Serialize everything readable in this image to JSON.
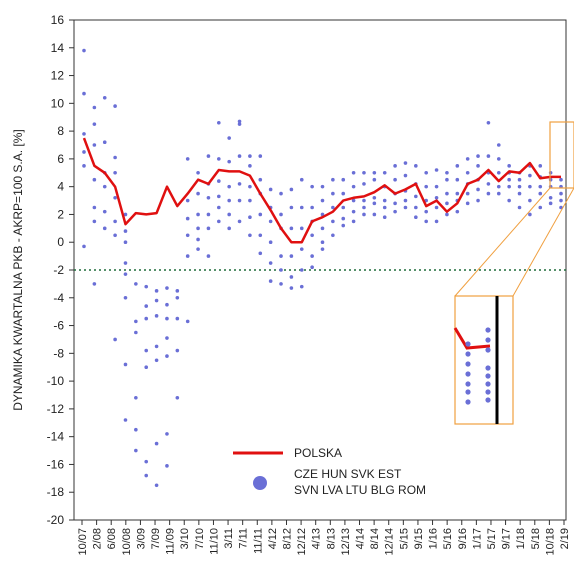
{
  "chart_data": {
    "type": "scatter",
    "ylabel": "DYNAMIKA KWARTALNA PKB - AKRP=100 S.A. [%]",
    "xlabel": "",
    "ylim": [
      -20,
      16
    ],
    "yticks": [
      16,
      14,
      12,
      10,
      8,
      6,
      4,
      2,
      0,
      -2,
      -4,
      -6,
      -8,
      -10,
      -12,
      -14,
      -16,
      -18,
      -20
    ],
    "x_tick_labels": [
      "10/07",
      "2/08",
      "6/08",
      "10/08",
      "3/09",
      "7/09",
      "11/09",
      "3/10",
      "7/10",
      "11/10",
      "3/11",
      "7/11",
      "11/11",
      "4/12",
      "8/12",
      "12/12",
      "4/13",
      "8/13",
      "12/13",
      "4/14",
      "8/14",
      "12/14",
      "5/15",
      "9/15",
      "1/16",
      "5/16",
      "9/16",
      "1/17",
      "5/17",
      "9/17",
      "1/18",
      "5/18",
      "10/18",
      "2/19"
    ],
    "reference_line": {
      "y": -2,
      "style": "dotted",
      "color": "#1f6b3a"
    },
    "legend": {
      "placement": "bottom-center",
      "items": [
        {
          "label": "POLSKA",
          "kind": "line",
          "color": "#e01010"
        },
        {
          "label": "CZE HUN SVK EST",
          "kind": "dot",
          "color": "#6a6fd6"
        },
        {
          "label": "SVN LVA LTU BLG ROM",
          "kind": "dot",
          "color": "#6a6fd6"
        }
      ]
    },
    "series": [
      {
        "name": "POLSKA",
        "color": "#e01010",
        "x": [
          0,
          1,
          2,
          3,
          4,
          5,
          6,
          7,
          8,
          9,
          10,
          11,
          12,
          13,
          14,
          15,
          16,
          17,
          18,
          19,
          20,
          21,
          22,
          23,
          24,
          25,
          26,
          27,
          28,
          29,
          30,
          31,
          32,
          33,
          34,
          35,
          36,
          37,
          38,
          39,
          40,
          41,
          42,
          43,
          44,
          45,
          46
        ],
        "y": [
          7.5,
          5.5,
          5.0,
          4.0,
          1.3,
          2.1,
          2.0,
          2.1,
          4.0,
          2.6,
          3.5,
          4.5,
          4.2,
          5.2,
          5.1,
          5.1,
          4.8,
          3.5,
          2.3,
          1.0,
          0.0,
          0.0,
          1.5,
          1.8,
          2.2,
          3.0,
          3.2,
          3.3,
          3.6,
          4.1,
          3.5,
          3.8,
          4.2,
          2.6,
          3.0,
          2.2,
          2.8,
          4.2,
          4.5,
          5.2,
          4.4,
          5.1,
          5.0,
          5.7,
          4.6,
          4.7,
          4.7
        ]
      },
      {
        "name": "CZE HUN SVK EST SVN LVA LTU BLG ROM",
        "color": "#6a6fd6",
        "points": [
          [
            0,
            13.8
          ],
          [
            0,
            10.7
          ],
          [
            0,
            7.8
          ],
          [
            0,
            6.5
          ],
          [
            0,
            5.5
          ],
          [
            0,
            -0.3
          ],
          [
            1,
            9.7
          ],
          [
            1,
            8.5
          ],
          [
            1,
            7.0
          ],
          [
            1,
            4.5
          ],
          [
            1,
            2.5
          ],
          [
            1,
            1.5
          ],
          [
            1,
            -3.0
          ],
          [
            2,
            10.4
          ],
          [
            2,
            7.2
          ],
          [
            2,
            5.0
          ],
          [
            2,
            4.0
          ],
          [
            2,
            2.2
          ],
          [
            2,
            1.0
          ],
          [
            3,
            9.8
          ],
          [
            3,
            6.1
          ],
          [
            3,
            5.0
          ],
          [
            3,
            3.2
          ],
          [
            3,
            1.5
          ],
          [
            3,
            0.5
          ],
          [
            3,
            -7.0
          ],
          [
            4,
            2.0
          ],
          [
            4,
            0.8
          ],
          [
            4,
            0.0
          ],
          [
            4,
            -1.5
          ],
          [
            4,
            -2.3
          ],
          [
            4,
            -4.0
          ],
          [
            4,
            -8.8
          ],
          [
            4,
            -12.8
          ],
          [
            5,
            -3.0
          ],
          [
            5,
            -5.7
          ],
          [
            5,
            -6.5
          ],
          [
            5,
            -11.2
          ],
          [
            5,
            -13.5
          ],
          [
            5,
            -15.0
          ],
          [
            6,
            -3.2
          ],
          [
            6,
            -4.6
          ],
          [
            6,
            -5.5
          ],
          [
            6,
            -7.8
          ],
          [
            6,
            -9.0
          ],
          [
            6,
            -15.8
          ],
          [
            6,
            -16.8
          ],
          [
            7,
            -3.5
          ],
          [
            7,
            -4.2
          ],
          [
            7,
            -5.3
          ],
          [
            7,
            -7.5
          ],
          [
            7,
            -8.5
          ],
          [
            7,
            -14.5
          ],
          [
            7,
            -17.5
          ],
          [
            8,
            -3.3
          ],
          [
            8,
            -4.5
          ],
          [
            8,
            -5.5
          ],
          [
            8,
            -6.9
          ],
          [
            8,
            -8.2
          ],
          [
            8,
            -13.8
          ],
          [
            8,
            -16.1
          ],
          [
            9,
            -3.5
          ],
          [
            9,
            -4.0
          ],
          [
            9,
            -5.5
          ],
          [
            9,
            -7.8
          ],
          [
            9,
            -11.2
          ],
          [
            10,
            6.0
          ],
          [
            10,
            3.0
          ],
          [
            10,
            1.7
          ],
          [
            10,
            0.5
          ],
          [
            10,
            -1.0
          ],
          [
            10,
            -5.7
          ],
          [
            11,
            5.0
          ],
          [
            11,
            3.5
          ],
          [
            11,
            2.0
          ],
          [
            11,
            1.0
          ],
          [
            11,
            0.2
          ],
          [
            11,
            -0.5
          ],
          [
            12,
            6.2
          ],
          [
            12,
            4.2
          ],
          [
            12,
            3.2
          ],
          [
            12,
            2.0
          ],
          [
            12,
            1.0
          ],
          [
            12,
            -1.0
          ],
          [
            13,
            8.6
          ],
          [
            13,
            6.0
          ],
          [
            13,
            4.4
          ],
          [
            13,
            3.3
          ],
          [
            13,
            2.5
          ],
          [
            13,
            1.5
          ],
          [
            14,
            7.5
          ],
          [
            14,
            5.8
          ],
          [
            14,
            4.0
          ],
          [
            14,
            3.0
          ],
          [
            14,
            2.0
          ],
          [
            14,
            1.0
          ],
          [
            15,
            8.7
          ],
          [
            15,
            8.5
          ],
          [
            15,
            6.2
          ],
          [
            15,
            4.2
          ],
          [
            15,
            3.0
          ],
          [
            15,
            1.5
          ],
          [
            16,
            6.2
          ],
          [
            16,
            5.5
          ],
          [
            16,
            4.0
          ],
          [
            16,
            3.0
          ],
          [
            16,
            1.8
          ],
          [
            16,
            0.5
          ],
          [
            17,
            6.2
          ],
          [
            17,
            4.5
          ],
          [
            17,
            3.5
          ],
          [
            17,
            2.0
          ],
          [
            17,
            0.5
          ],
          [
            17,
            -0.8
          ],
          [
            18,
            3.8
          ],
          [
            18,
            2.5
          ],
          [
            18,
            1.5
          ],
          [
            18,
            0.0
          ],
          [
            18,
            -1.5
          ],
          [
            18,
            -2.8
          ],
          [
            19,
            3.5
          ],
          [
            19,
            2.0
          ],
          [
            19,
            1.0
          ],
          [
            19,
            -1.0
          ],
          [
            19,
            -2.0
          ],
          [
            19,
            -3.0
          ],
          [
            20,
            3.8
          ],
          [
            20,
            2.5
          ],
          [
            20,
            1.0
          ],
          [
            20,
            -1.0
          ],
          [
            20,
            -2.5
          ],
          [
            20,
            -3.3
          ],
          [
            21,
            4.5
          ],
          [
            21,
            2.5
          ],
          [
            21,
            1.0
          ],
          [
            21,
            -0.5
          ],
          [
            21,
            -2.0
          ],
          [
            21,
            -3.2
          ],
          [
            22,
            4.0
          ],
          [
            22,
            2.5
          ],
          [
            22,
            1.5
          ],
          [
            22,
            0.5
          ],
          [
            22,
            -1.0
          ],
          [
            22,
            -1.8
          ],
          [
            23,
            4.0
          ],
          [
            23,
            3.0
          ],
          [
            23,
            2.0
          ],
          [
            23,
            1.0
          ],
          [
            23,
            0.0
          ],
          [
            23,
            -0.5
          ],
          [
            24,
            4.5
          ],
          [
            24,
            3.5
          ],
          [
            24,
            2.5
          ],
          [
            24,
            1.5
          ],
          [
            24,
            0.5
          ],
          [
            25,
            4.5
          ],
          [
            25,
            3.5
          ],
          [
            25,
            2.5
          ],
          [
            25,
            1.7
          ],
          [
            25,
            1.2
          ],
          [
            26,
            5.0
          ],
          [
            26,
            4.0
          ],
          [
            26,
            3.0
          ],
          [
            26,
            2.2
          ],
          [
            26,
            1.5
          ],
          [
            27,
            5.0
          ],
          [
            27,
            4.2
          ],
          [
            27,
            3.0
          ],
          [
            27,
            2.5
          ],
          [
            27,
            2.0
          ],
          [
            28,
            5.0
          ],
          [
            28,
            4.5
          ],
          [
            28,
            3.2
          ],
          [
            28,
            2.8
          ],
          [
            28,
            2.0
          ],
          [
            29,
            5.0
          ],
          [
            29,
            4.0
          ],
          [
            29,
            3.0
          ],
          [
            29,
            2.5
          ],
          [
            29,
            1.8
          ],
          [
            30,
            5.5
          ],
          [
            30,
            4.5
          ],
          [
            30,
            3.5
          ],
          [
            30,
            2.8
          ],
          [
            30,
            2.2
          ],
          [
            31,
            5.7
          ],
          [
            31,
            4.8
          ],
          [
            31,
            3.7
          ],
          [
            31,
            3.0
          ],
          [
            31,
            2.5
          ],
          [
            32,
            5.5
          ],
          [
            32,
            4.2
          ],
          [
            32,
            3.3
          ],
          [
            32,
            2.5
          ],
          [
            32,
            1.8
          ],
          [
            33,
            5.0
          ],
          [
            33,
            4.0
          ],
          [
            33,
            3.0
          ],
          [
            33,
            2.2
          ],
          [
            33,
            1.5
          ],
          [
            34,
            5.2
          ],
          [
            34,
            4.0
          ],
          [
            34,
            3.2
          ],
          [
            34,
            2.5
          ],
          [
            34,
            1.5
          ],
          [
            35,
            5.0
          ],
          [
            35,
            4.5
          ],
          [
            35,
            3.5
          ],
          [
            35,
            2.8
          ],
          [
            35,
            2.0
          ],
          [
            36,
            5.5
          ],
          [
            36,
            4.5
          ],
          [
            36,
            3.5
          ],
          [
            36,
            3.0
          ],
          [
            36,
            2.2
          ],
          [
            37,
            6.0
          ],
          [
            37,
            5.0
          ],
          [
            37,
            4.2
          ],
          [
            37,
            3.5
          ],
          [
            37,
            2.8
          ],
          [
            38,
            6.2
          ],
          [
            38,
            5.5
          ],
          [
            38,
            4.5
          ],
          [
            38,
            3.8
          ],
          [
            38,
            3.0
          ],
          [
            39,
            8.6
          ],
          [
            39,
            6.2
          ],
          [
            39,
            5.0
          ],
          [
            39,
            4.2
          ],
          [
            39,
            3.5
          ],
          [
            40,
            7.0
          ],
          [
            40,
            6.0
          ],
          [
            40,
            5.0
          ],
          [
            40,
            4.0
          ],
          [
            40,
            3.5
          ],
          [
            41,
            5.5
          ],
          [
            41,
            5.0
          ],
          [
            41,
            4.5
          ],
          [
            41,
            4.0
          ],
          [
            41,
            3.0
          ],
          [
            42,
            5.0
          ],
          [
            42,
            4.5
          ],
          [
            42,
            4.0
          ],
          [
            42,
            3.5
          ],
          [
            42,
            2.5
          ],
          [
            43,
            5.5
          ],
          [
            43,
            4.8
          ],
          [
            43,
            4.0
          ],
          [
            43,
            3.0
          ],
          [
            43,
            2.0
          ],
          [
            44,
            5.5
          ],
          [
            44,
            4.7
          ],
          [
            44,
            4.0
          ],
          [
            44,
            3.5
          ],
          [
            44,
            2.5
          ],
          [
            45,
            5.0
          ],
          [
            45,
            4.5
          ],
          [
            45,
            4.0
          ],
          [
            45,
            3.2
          ],
          [
            45,
            2.8
          ],
          [
            46,
            4.5
          ],
          [
            46,
            4.0
          ],
          [
            46,
            3.5
          ],
          [
            46,
            3.0
          ],
          [
            46,
            2.5
          ]
        ]
      }
    ]
  }
}
